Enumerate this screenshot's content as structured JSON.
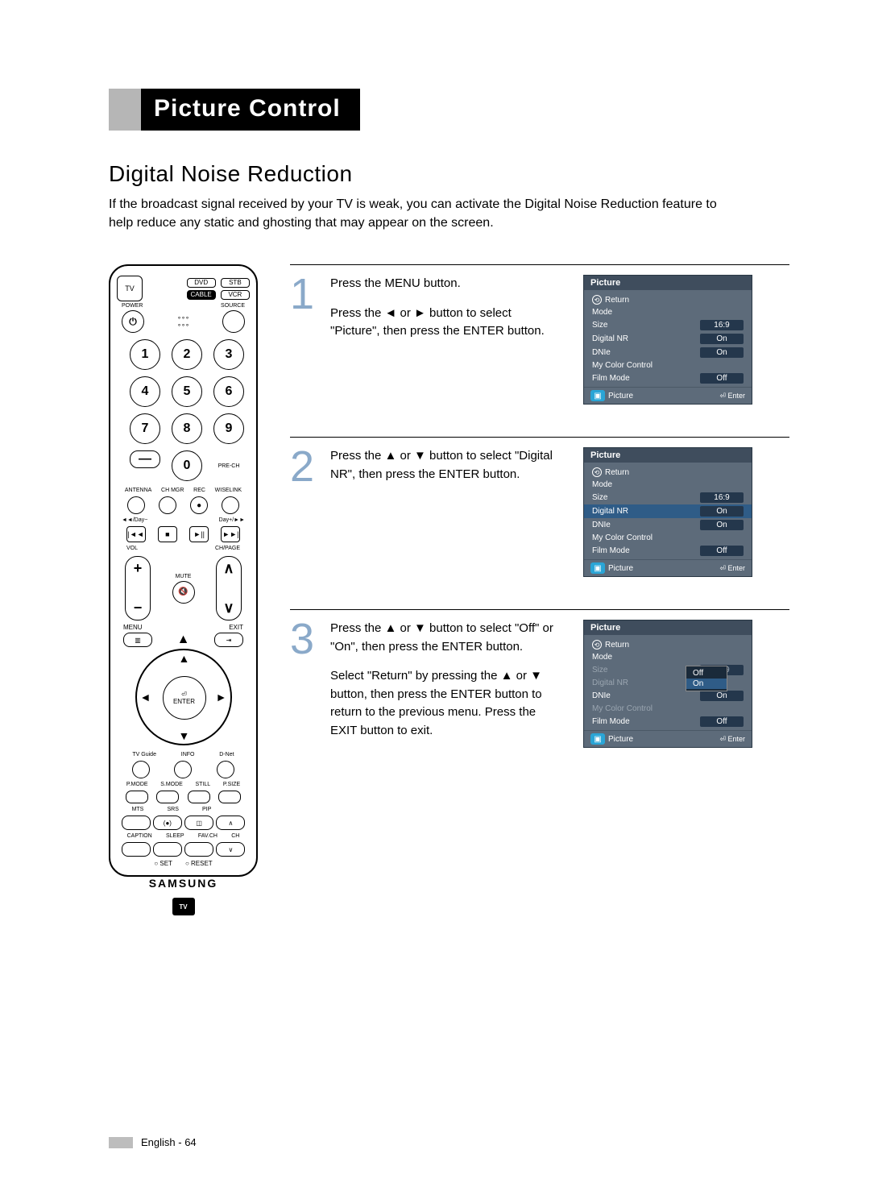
{
  "colors": {
    "title_gray": "#b6b6b6",
    "title_black": "#000000",
    "step_number": "#8aa9c9",
    "osd_bg": "#5d6b7a",
    "osd_header": "#3f4d5d",
    "osd_highlight": "#2f5c87",
    "osd_value_bg": "#24374c",
    "osd_icon_blue": "#2aa5d6"
  },
  "title": "Picture Control",
  "subtitle": "Digital Noise Reduction",
  "intro": "If the broadcast signal received by your TV is weak, you can activate the Digital Noise Reduction feature to help reduce any static and ghosting that may appear on the screen.",
  "remote": {
    "source_buttons": {
      "tv": "TV",
      "dvd": "DVD",
      "stb": "STB",
      "cable": "CABLE",
      "vcr": "VCR"
    },
    "power": "POWER",
    "source": "SOURCE",
    "numbers": [
      "1",
      "2",
      "3",
      "4",
      "5",
      "6",
      "7",
      "8",
      "9",
      "0"
    ],
    "pre_ch": "PRE-CH",
    "row_small": [
      "ANTENNA",
      "CH MGR",
      "REC",
      "WISELINK"
    ],
    "transport_top": "◄◄/Day−",
    "transport_top_r": "Day+/►►",
    "transport_icons": [
      "|◄◄",
      "■",
      "►||",
      "►►|"
    ],
    "vol": "VOL",
    "ch_page": "CH/PAGE",
    "mute": "MUTE",
    "menu": "MENU",
    "exit": "EXIT",
    "enter": "ENTER",
    "row_guide": [
      "TV Guide",
      "INFO",
      "D-Net"
    ],
    "row_modes": [
      "P.MODE",
      "S.MODE",
      "STILL",
      "P.SIZE"
    ],
    "row_mts": [
      "MTS",
      "SRS",
      "PIP",
      ""
    ],
    "row_caption": [
      "CAPTION",
      "SLEEP",
      "FAV.CH",
      "CH"
    ],
    "set_reset": [
      "SET",
      "RESET"
    ],
    "brand": "SAMSUNG",
    "tvguide": "TV"
  },
  "steps": [
    {
      "num": "1",
      "text": "Press the MENU button.\nPress the ◄ or ► button to select \"Picture\", then press the ENTER button.",
      "osd": {
        "title": "Picture",
        "return_label": "Return",
        "rows": [
          {
            "label": "Mode",
            "value": ""
          },
          {
            "label": "Size",
            "value": "16:9"
          },
          {
            "label": "Digital NR",
            "value": "On"
          },
          {
            "label": "DNIe",
            "value": "On"
          },
          {
            "label": "My Color Control",
            "value": ""
          },
          {
            "label": "Film Mode",
            "value": "Off"
          }
        ],
        "highlight_index": -1,
        "footer_label": "Picture",
        "footer_enter": "Enter"
      }
    },
    {
      "num": "2",
      "text": "Press the ▲ or ▼ button to select \"Digital NR\", then press the ENTER button.",
      "osd": {
        "title": "Picture",
        "return_label": "Return",
        "rows": [
          {
            "label": "Mode",
            "value": ""
          },
          {
            "label": "Size",
            "value": "16:9"
          },
          {
            "label": "Digital NR",
            "value": "On"
          },
          {
            "label": "DNIe",
            "value": "On"
          },
          {
            "label": "My Color Control",
            "value": ""
          },
          {
            "label": "Film Mode",
            "value": "Off"
          }
        ],
        "highlight_index": 2,
        "footer_label": "Picture",
        "footer_enter": "Enter"
      }
    },
    {
      "num": "3",
      "text": "Press the ▲ or ▼ button to select \"Off\" or \"On\", then press the ENTER button.",
      "text2": "Select \"Return\" by pressing the ▲ or ▼ button, then press the ENTER button to return to the previous menu. Press the EXIT button to exit.",
      "osd": {
        "title": "Picture",
        "return_label": "Return",
        "rows": [
          {
            "label": "Mode",
            "value": ""
          },
          {
            "label": "Size",
            "value": "16:9",
            "dim": true
          },
          {
            "label": "Digital NR",
            "value": "",
            "dim": true
          },
          {
            "label": "DNIe",
            "value": "On"
          },
          {
            "label": "My Color Control",
            "value": "",
            "dim": true
          },
          {
            "label": "Film Mode",
            "value": "Off"
          }
        ],
        "highlight_index": -1,
        "popup": {
          "options": [
            "Off",
            "On"
          ],
          "selected": 1
        },
        "footer_label": "Picture",
        "footer_enter": "Enter"
      }
    }
  ],
  "footer": "English - 64"
}
